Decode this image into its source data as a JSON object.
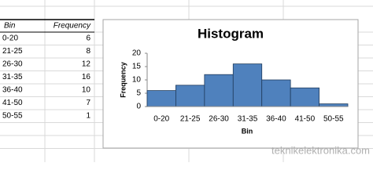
{
  "table": {
    "headers": [
      "Bin",
      "Frequency"
    ],
    "rows": [
      [
        "0-20",
        6
      ],
      [
        "21-25",
        8
      ],
      [
        "26-30",
        12
      ],
      [
        "31-35",
        16
      ],
      [
        "36-40",
        10
      ],
      [
        "41-50",
        7
      ],
      [
        "50-55",
        1
      ]
    ]
  },
  "chart_data": {
    "type": "bar",
    "title": "Histogram",
    "x_label": "Bin",
    "y_label": "Frequency",
    "categories": [
      "0-20",
      "21-25",
      "26-30",
      "31-35",
      "36-40",
      "41-50",
      "50-55"
    ],
    "values": [
      6,
      8,
      12,
      16,
      10,
      7,
      1
    ],
    "color": "#4f81bd",
    "edge_color": "#1f3b5c",
    "ylim": [
      0,
      20
    ],
    "yticks": [
      0,
      5,
      10,
      15,
      20
    ],
    "grid": false
  },
  "watermark": "teknikelektronika.com"
}
